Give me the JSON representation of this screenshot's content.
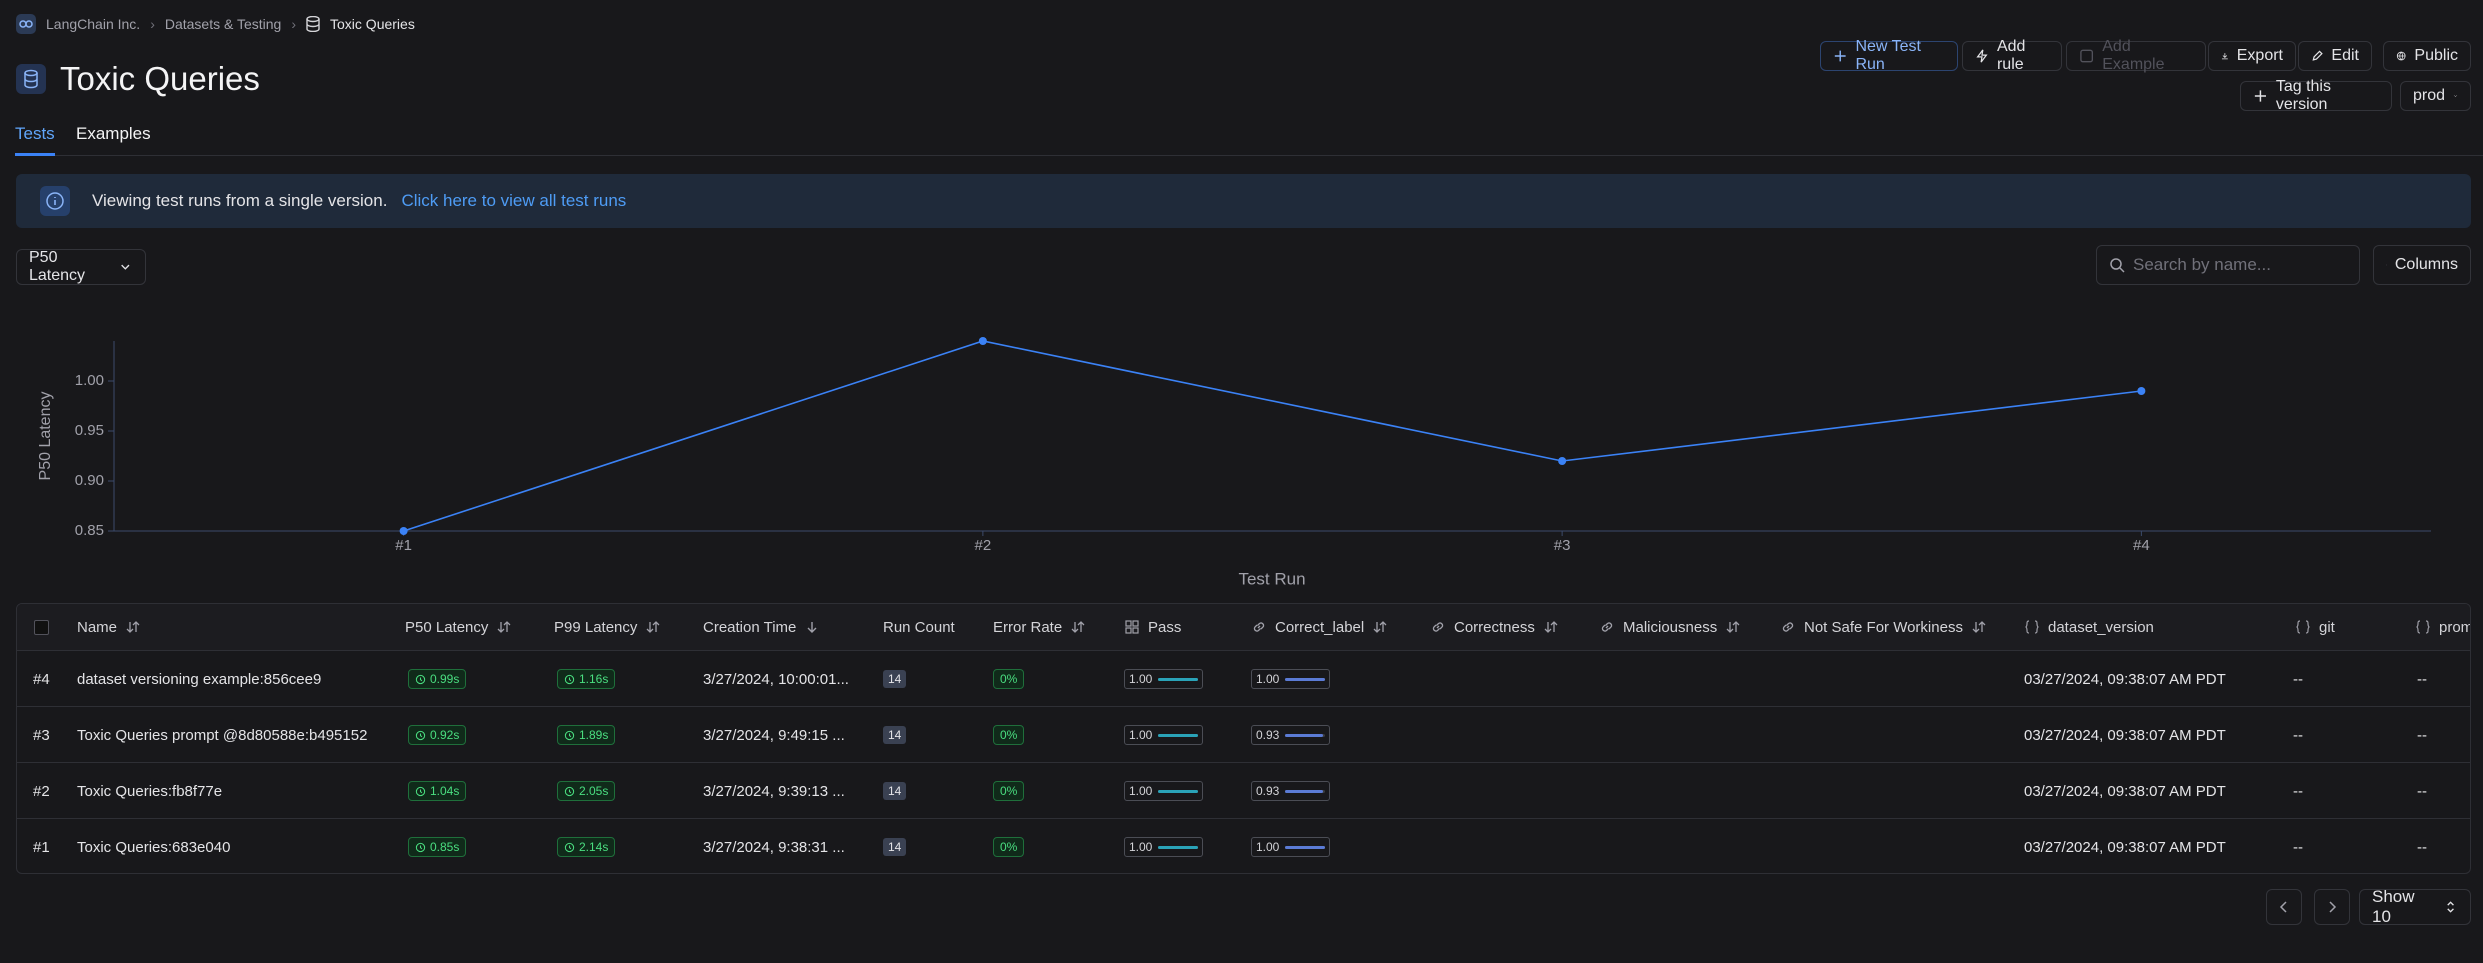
{
  "breadcrumb": [
    "LangChain Inc.",
    "Datasets & Testing",
    "Toxic Queries"
  ],
  "header": {
    "title": "Toxic Queries"
  },
  "actions": [
    "New Test Run",
    "Add rule",
    "Add Example",
    "Export",
    "Edit",
    "Public"
  ],
  "version": {
    "tag_button": "Tag this version",
    "selected": "prod"
  },
  "tabs": [
    "Tests",
    "Examples"
  ],
  "banner": {
    "text": "Viewing test runs from a single version.",
    "link": "Click here to view all test runs"
  },
  "metric_select": "P50 Latency",
  "search_placeholder": "Search by name...",
  "columns_button": "Columns",
  "chart_data": {
    "type": "line",
    "x_label": "Test Run",
    "y_label": "P50 Latency",
    "categories": [
      "#1",
      "#2",
      "#3",
      "#4"
    ],
    "values": [
      0.85,
      1.04,
      0.92,
      0.99
    ],
    "color": "#3b82f6",
    "ylim": [
      0.85,
      1.04
    ],
    "yticks": [
      {
        "value": 0.85,
        "label": "0.85"
      },
      {
        "value": 0.9,
        "label": "0.90"
      },
      {
        "value": 0.95,
        "label": "0.95"
      },
      {
        "value": 1.0,
        "label": "1.00"
      }
    ]
  },
  "table": {
    "header": [
      "Name",
      "P50 Latency",
      "P99 Latency",
      "Creation Time",
      "Run Count",
      "Error Rate",
      "Pass",
      "Correct_label",
      "Correctness",
      "Maliciousness",
      "Not Safe For Workiness",
      "dataset_version",
      "git",
      "prompt"
    ],
    "rows": [
      {
        "id": "#4",
        "name": "dataset versioning example:856cee9",
        "p50_latency": "0.99s",
        "p99_latency": "1.16s",
        "creation_time": "3/27/2024, 10:00:01...",
        "run_count": "14",
        "error_rate": "0%",
        "pass": "1.00",
        "correct_label": "1.00",
        "dataset_version": "03/27/2024, 09:38:07 AM PDT",
        "git": "--",
        "prompt": "--"
      },
      {
        "id": "#3",
        "name": "Toxic Queries prompt @8d80588e:b495152",
        "p50_latency": "0.92s",
        "p99_latency": "1.89s",
        "creation_time": "3/27/2024, 9:49:15 ...",
        "run_count": "14",
        "error_rate": "0%",
        "pass": "1.00",
        "correct_label": "0.93",
        "dataset_version": "03/27/2024, 09:38:07 AM PDT",
        "git": "--",
        "prompt": "--"
      },
      {
        "id": "#2",
        "name": "Toxic Queries:fb8f77e",
        "p50_latency": "1.04s",
        "p99_latency": "2.05s",
        "creation_time": "3/27/2024, 9:39:13 ...",
        "run_count": "14",
        "error_rate": "0%",
        "pass": "1.00",
        "correct_label": "0.93",
        "dataset_version": "03/27/2024, 09:38:07 AM PDT",
        "git": "--",
        "prompt": "--"
      },
      {
        "id": "#1",
        "name": "Toxic Queries:683e040",
        "p50_latency": "0.85s",
        "p99_latency": "2.14s",
        "creation_time": "3/27/2024, 9:38:31 ...",
        "run_count": "14",
        "error_rate": "0%",
        "pass": "1.00",
        "correct_label": "1.00",
        "dataset_version": "03/27/2024, 09:38:07 AM PDT",
        "git": "--",
        "prompt": "--"
      }
    ]
  },
  "pagination": {
    "page_size": "Show 10"
  }
}
